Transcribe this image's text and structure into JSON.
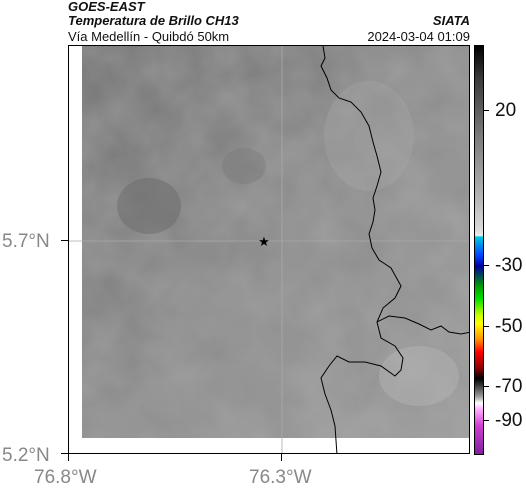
{
  "header": {
    "satellite": "GOES-EAST",
    "product": "Temperatura de Brillo CH13",
    "region": "Vía Medellín - Quibdó 50km",
    "brand": "SIATA",
    "datetime": "2024-03-04 01:09"
  },
  "axes": {
    "lat_labels": [
      "5.7°N",
      "5.2°N"
    ],
    "lon_labels": [
      "76.8°W",
      "76.3°W"
    ]
  },
  "colorbar": {
    "ticks": [
      "20",
      "-30",
      "-50",
      "-70",
      "-90"
    ]
  },
  "marker": {
    "symbol": "★",
    "label": ""
  }
}
